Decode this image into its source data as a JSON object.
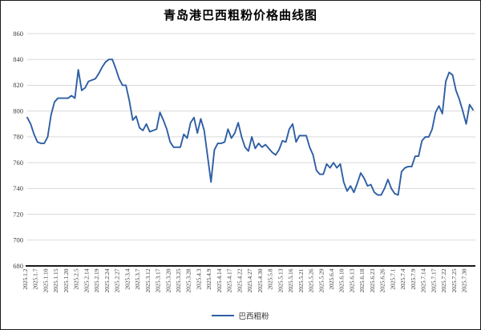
{
  "chart_data": {
    "type": "line",
    "title": "青岛港巴西粗粉价格曲线图",
    "legend": "巴西粗粉",
    "legend_position": "bottom",
    "series_color": "#2E5FA4",
    "grid": true,
    "gridline_color": "#d9d9d9",
    "axis_color": "#1a1a1a",
    "tick_label_color": "#404040",
    "ylim": [
      680,
      860
    ],
    "yticks": [
      860,
      840,
      820,
      800,
      780,
      760,
      740,
      720,
      700,
      680
    ],
    "x_tick_labels": [
      "2025.1.2",
      "2025.1.7",
      "2025.1.10",
      "2025.1.15",
      "2025.1.20",
      "2025.2.5",
      "2025.2.14",
      "2025.2.19",
      "2025.2.24",
      "2025.2.27",
      "2025.3.4",
      "2025.3.7",
      "2025.3.12",
      "2025.3.17",
      "2025.3.20",
      "2025.3.25",
      "2025.3.28",
      "2025.4.3",
      "2025.4.9",
      "2025.4.14",
      "2025.4.17",
      "2025.4.22",
      "2025.4.27",
      "2025.4.30",
      "2025.5.8",
      "2025.5.13",
      "2025.5.16",
      "2025.5.21",
      "2025.5.26",
      "2025.5.29",
      "2025.6.4",
      "2025.6.10",
      "2025.6.13",
      "2025.6.18",
      "2025.6.23",
      "2025.6.26",
      "2025.7.1",
      "2025.7.4",
      "2025.7.9",
      "2025.7.14",
      "2025.7.17",
      "2025.7.22",
      "2025.7.25",
      "2025.7.30"
    ],
    "points_per_x_tick": 3,
    "values": [
      795,
      790,
      782,
      776,
      775,
      775,
      780,
      797,
      807,
      810,
      810,
      810,
      810,
      812,
      810,
      832,
      816,
      818,
      823,
      824,
      825,
      829,
      834,
      838,
      840,
      840,
      833,
      825,
      820,
      820,
      808,
      793,
      796,
      787,
      785,
      790,
      784,
      785,
      786,
      799,
      793,
      786,
      776,
      772,
      772,
      772,
      782,
      779,
      791,
      795,
      783,
      794,
      785,
      765,
      745,
      770,
      775,
      775,
      776,
      786,
      779,
      783,
      791,
      780,
      772,
      769,
      780,
      771,
      775,
      772,
      774,
      771,
      768,
      766,
      770,
      777,
      776,
      786,
      790,
      776,
      781,
      781,
      781,
      772,
      766,
      754,
      751,
      751,
      759,
      756,
      760,
      756,
      759,
      745,
      738,
      742,
      737,
      744,
      752,
      748,
      742,
      743,
      737,
      735,
      735,
      740,
      747,
      740,
      736,
      735,
      753,
      756,
      757,
      757,
      765,
      765,
      777,
      780,
      780,
      786,
      799,
      804,
      798,
      823,
      830,
      828,
      816,
      809,
      800,
      790,
      805,
      801
    ]
  }
}
